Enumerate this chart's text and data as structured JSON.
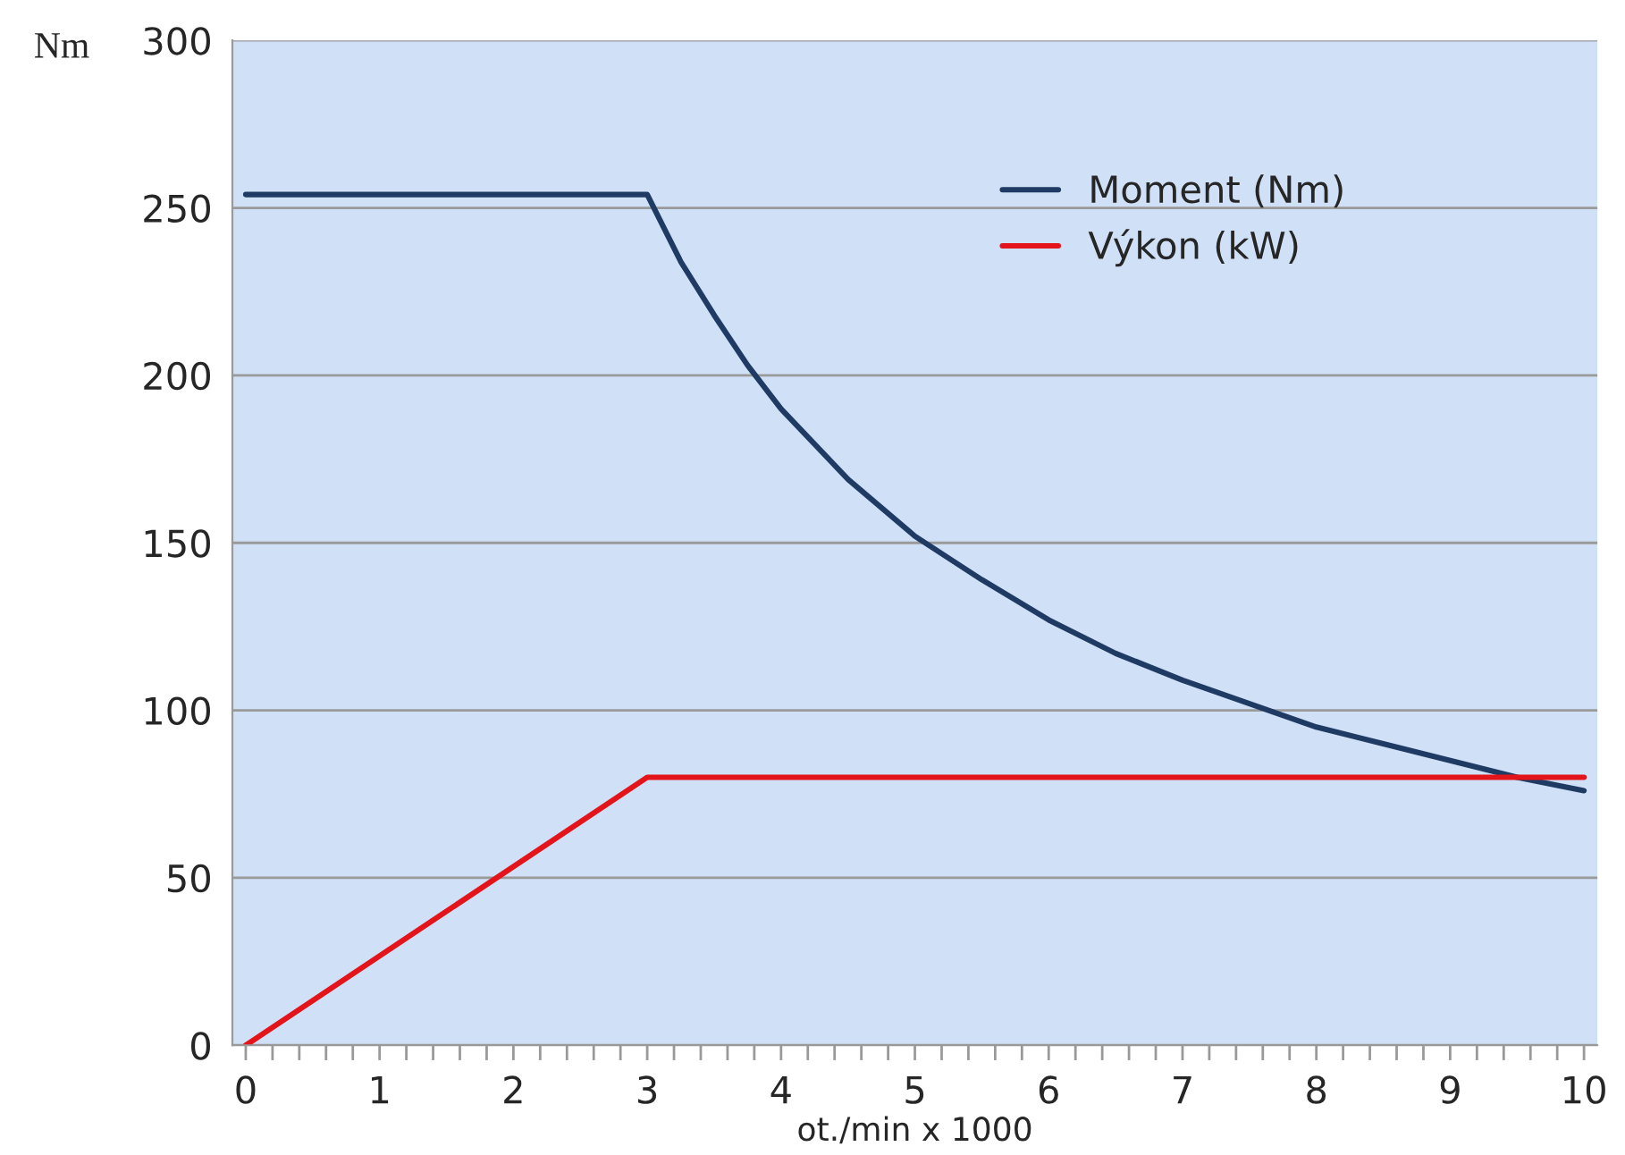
{
  "chart_data": {
    "type": "line",
    "xlabel": "ot./min x 1000",
    "ylabel": "Nm",
    "xlim": [
      -0.1,
      10.1
    ],
    "ylim": [
      0,
      300
    ],
    "xticks": [
      0,
      {
        "value": 0.2,
        "label": null
      },
      {
        "value": 0.4,
        "label": null
      },
      {
        "value": 0.6,
        "label": null
      },
      {
        "value": 0.8,
        "label": null
      },
      1,
      {
        "value": 1.2,
        "label": null
      },
      {
        "value": 1.4,
        "label": null
      },
      {
        "value": 1.6,
        "label": null
      },
      {
        "value": 1.8,
        "label": null
      },
      2,
      {
        "value": 2.2,
        "label": null
      },
      {
        "value": 2.4,
        "label": null
      },
      {
        "value": 2.6,
        "label": null
      },
      {
        "value": 2.8,
        "label": null
      },
      3,
      {
        "value": 3.2,
        "label": null
      },
      {
        "value": 3.4,
        "label": null
      },
      {
        "value": 3.6,
        "label": null
      },
      {
        "value": 3.8,
        "label": null
      },
      4,
      {
        "value": 4.2,
        "label": null
      },
      {
        "value": 4.4,
        "label": null
      },
      {
        "value": 4.6,
        "label": null
      },
      {
        "value": 4.8,
        "label": null
      },
      5,
      {
        "value": 5.2,
        "label": null
      },
      {
        "value": 5.4,
        "label": null
      },
      {
        "value": 5.6,
        "label": null
      },
      {
        "value": 5.8,
        "label": null
      },
      6,
      {
        "value": 6.2,
        "label": null
      },
      {
        "value": 6.4,
        "label": null
      },
      {
        "value": 6.6,
        "label": null
      },
      {
        "value": 6.8,
        "label": null
      },
      7,
      {
        "value": 7.2,
        "label": null
      },
      {
        "value": 7.4,
        "label": null
      },
      {
        "value": 7.6,
        "label": null
      },
      {
        "value": 7.8,
        "label": null
      },
      8,
      {
        "value": 8.2,
        "label": null
      },
      {
        "value": 8.4,
        "label": null
      },
      {
        "value": 8.6,
        "label": null
      },
      {
        "value": 8.8,
        "label": null
      },
      9,
      {
        "value": 9.2,
        "label": null
      },
      {
        "value": 9.4,
        "label": null
      },
      {
        "value": 9.6,
        "label": null
      },
      {
        "value": 9.8,
        "label": null
      },
      10
    ],
    "yticks": [
      0,
      50,
      100,
      150,
      200,
      250,
      300
    ],
    "grid": "y",
    "legend": "top right",
    "line_style": "solid",
    "series": [
      {
        "name": "Moment (Nm)",
        "color": "#1f3b63",
        "x": [
          0,
          3,
          3.25,
          3.5,
          3.75,
          4,
          4.5,
          5,
          5.5,
          6,
          6.5,
          7,
          7.5,
          8,
          8.5,
          9,
          9.5,
          10
        ],
        "values": [
          254,
          254,
          234,
          218,
          203,
          190,
          169,
          152,
          139,
          127,
          117,
          109,
          102,
          95,
          90,
          85,
          80,
          76
        ]
      },
      {
        "name": "Výkon (kW)",
        "color": "#e3151a",
        "x": [
          0,
          3,
          10
        ],
        "values": [
          0,
          80,
          80
        ]
      }
    ]
  }
}
